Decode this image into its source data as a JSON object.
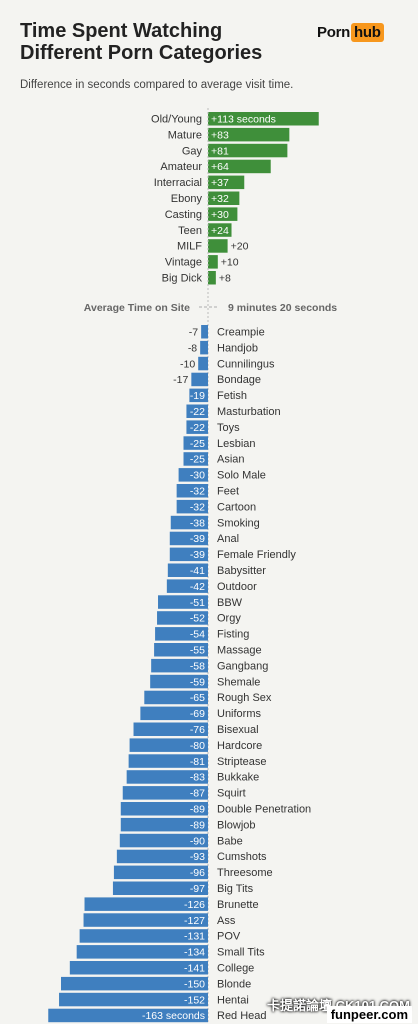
{
  "header": {
    "title_line1": "Time Spent Watching",
    "title_line2": "Different Porn Categories",
    "subtitle": "Difference in seconds compared to average visit time.",
    "logo_part1": "Porn",
    "logo_part2": "hub"
  },
  "chart_data": {
    "type": "bar",
    "orientation": "horizontal",
    "title": "Time Spent Watching Different Porn Categories",
    "subtitle": "Difference in seconds compared to average visit time.",
    "unit": "seconds",
    "baseline_label": "Average Time on Site",
    "baseline_value": "9 minutes 20 seconds",
    "colors": {
      "positive": "#3f8f3a",
      "negative": "#3f7fbf"
    },
    "positive": {
      "categories": [
        "Old/Young",
        "Mature",
        "Gay",
        "Amateur",
        "Interracial",
        "Ebony",
        "Casting",
        "Teen",
        "MILF",
        "Vintage",
        "Big Dick"
      ],
      "values": [
        113,
        83,
        81,
        64,
        37,
        32,
        30,
        24,
        20,
        10,
        8
      ],
      "labels": [
        "+113 seconds",
        "+83",
        "+81",
        "+64",
        "+37",
        "+32",
        "+30",
        "+24",
        "+20",
        "+10",
        "+8"
      ]
    },
    "negative": {
      "categories": [
        "Creampie",
        "Handjob",
        "Cunnilingus",
        "Bondage",
        "Fetish",
        "Masturbation",
        "Toys",
        "Lesbian",
        "Asian",
        "Solo Male",
        "Feet",
        "Cartoon",
        "Smoking",
        "Anal",
        "Female Friendly",
        "Babysitter",
        "Outdoor",
        "BBW",
        "Orgy",
        "Fisting",
        "Massage",
        "Gangbang",
        "Shemale",
        "Rough Sex",
        "Uniforms",
        "Bisexual",
        "Hardcore",
        "Striptease",
        "Bukkake",
        "Squirt",
        "Double Penetration",
        "Blowjob",
        "Babe",
        "Cumshots",
        "Threesome",
        "Big Tits",
        "Brunette",
        "Ass",
        "POV",
        "Small Tits",
        "College",
        "Blonde",
        "Hentai",
        "Red Head"
      ],
      "values": [
        -7,
        -8,
        -10,
        -17,
        -19,
        -22,
        -22,
        -25,
        -25,
        -30,
        -32,
        -32,
        -38,
        -39,
        -39,
        -41,
        -42,
        -51,
        -52,
        -54,
        -55,
        -58,
        -59,
        -65,
        -69,
        -76,
        -80,
        -81,
        -83,
        -87,
        -89,
        -89,
        -90,
        -93,
        -96,
        -97,
        -126,
        -127,
        -131,
        -134,
        -141,
        -150,
        -152,
        -163
      ],
      "labels": [
        "-7",
        "-8",
        "-10",
        "-17",
        "-19",
        "-22",
        "-22",
        "-25",
        "-25",
        "-30",
        "-32",
        "-32",
        "-38",
        "-39",
        "-39",
        "-41",
        "-42",
        "-51",
        "-52",
        "-54",
        "-55",
        "-58",
        "-59",
        "-65",
        "-69",
        "-76",
        "-80",
        "-81",
        "-83",
        "-87",
        "-89",
        "-89",
        "-90",
        "-93",
        "-96",
        "-97",
        "-126",
        "-127",
        "-131",
        "-134",
        "-141",
        "-150",
        "-152",
        "-163 seconds"
      ]
    }
  },
  "watermark": {
    "line1": "卡提諾論壇 CK101.COM",
    "line2": "funpeer.com"
  }
}
